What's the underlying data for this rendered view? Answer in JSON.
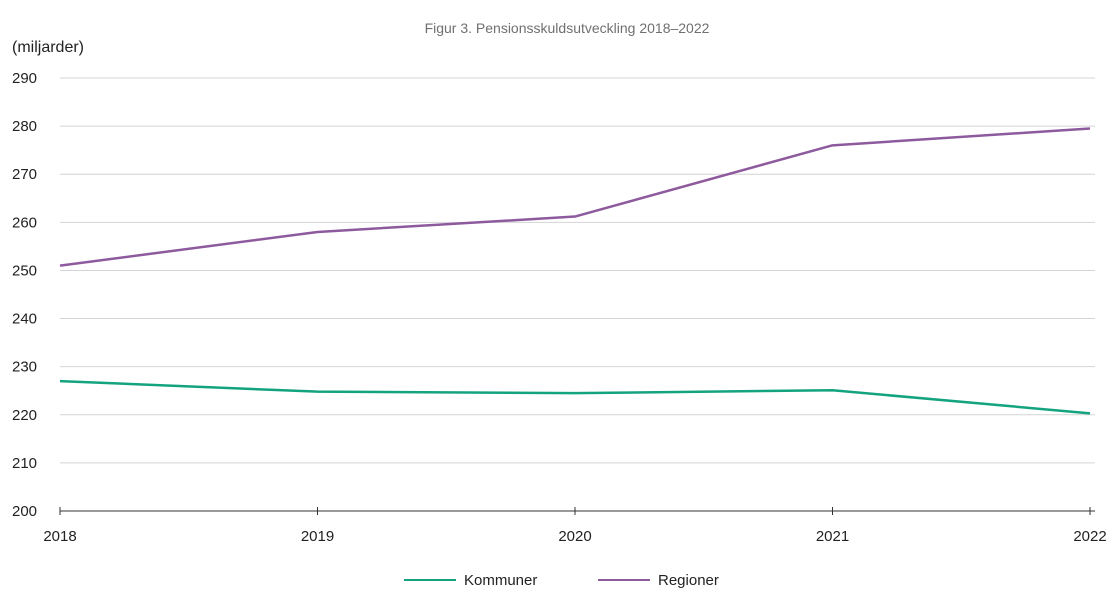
{
  "chart_data": {
    "type": "line",
    "title": "Figur 3. Pensionsskuldsutveckling 2018–2022",
    "ylabel": "(miljarder)",
    "xlabel": "",
    "categories": [
      "2018",
      "2019",
      "2020",
      "2021",
      "2022"
    ],
    "yticks": [
      "200",
      "210",
      "220",
      "230",
      "240",
      "250",
      "260",
      "270",
      "280",
      "290"
    ],
    "ylim": [
      200,
      290
    ],
    "grid": true,
    "legend_position": "bottom-center",
    "series": [
      {
        "name": "Kommuner",
        "color": "#14a37f",
        "values": [
          227,
          224.8,
          224.5,
          225.1,
          220.3
        ]
      },
      {
        "name": "Regioner",
        "color": "#8e5a9e",
        "values": [
          251,
          258,
          261.2,
          276,
          279.5
        ]
      }
    ]
  }
}
